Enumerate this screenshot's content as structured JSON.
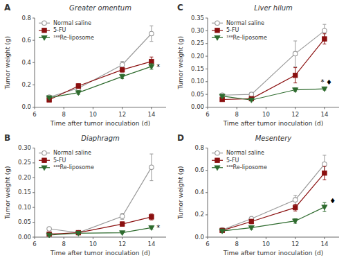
{
  "chart_data": [
    {
      "type": "line",
      "label": "A",
      "title": "Greater omentum",
      "xlabel": "Time after tumor inoculation (d)",
      "ylabel": "Tumor weight (g)",
      "x": [
        7,
        9,
        12,
        14
      ],
      "xlim": [
        6,
        15
      ],
      "xticks": [
        6,
        8,
        10,
        12,
        14
      ],
      "ylim": [
        0.0,
        0.8
      ],
      "yticks": [
        {
          "value": 0.0,
          "label": "0.0"
        },
        0.2,
        0.4,
        0.6,
        0.8
      ],
      "grid": false,
      "legend": "upper left",
      "series": [
        {
          "name": "Normal saline",
          "color": "#999999",
          "marker": "circle-open",
          "values": [
            0.09,
            0.17,
            0.38,
            0.66
          ],
          "errors": [
            0.015,
            0.025,
            0.03,
            0.07
          ]
        },
        {
          "name": "5-FU",
          "color": "#8B1010",
          "marker": "square",
          "values": [
            0.065,
            0.19,
            0.335,
            0.41
          ],
          "errors": [
            0.01,
            0.02,
            0.02,
            0.04
          ]
        },
        {
          "name": "¹⁸⁸Re-liposome",
          "color": "#2E6B2E",
          "marker": "triangle-down",
          "values": [
            0.085,
            0.13,
            0.275,
            0.365
          ],
          "errors": [
            0.01,
            0.015,
            0.02,
            0.025
          ]
        }
      ],
      "annotations": [
        {
          "text": "*",
          "x": 14.35,
          "y": 0.355
        }
      ]
    },
    {
      "type": "line",
      "label": "C",
      "title": "Liver hilum",
      "xlabel": "Time after tumor inoculation (d)",
      "ylabel": "Tumor weight (g)",
      "x": [
        7,
        9,
        12,
        14
      ],
      "xlim": [
        6,
        15
      ],
      "xticks": [
        6,
        8,
        10,
        12,
        14
      ],
      "ylim": [
        0.0,
        0.35
      ],
      "yticks": [
        {
          "value": 0.0,
          "label": "0.00"
        },
        0.05,
        {
          "value": 0.1,
          "label": "0.10"
        },
        0.15,
        {
          "value": 0.2,
          "label": "0.20"
        },
        0.25,
        {
          "value": 0.3,
          "label": "0.30"
        },
        0.35
      ],
      "grid": false,
      "legend": "upper left",
      "series": [
        {
          "name": "Normal saline",
          "color": "#999999",
          "marker": "circle-open",
          "values": [
            0.047,
            0.05,
            0.21,
            0.3
          ],
          "errors": [
            0.005,
            0.007,
            0.05,
            0.025
          ]
        },
        {
          "name": "5-FU",
          "color": "#8B1010",
          "marker": "square",
          "values": [
            0.03,
            0.033,
            0.125,
            0.268
          ],
          "errors": [
            0.004,
            0.005,
            0.03,
            0.02
          ]
        },
        {
          "name": "¹⁸⁸Re-liposome",
          "color": "#2E6B2E",
          "marker": "triangle-down",
          "values": [
            0.043,
            0.028,
            0.068,
            0.072
          ],
          "errors": [
            0.004,
            0.003,
            0.007,
            0.005
          ]
        }
      ],
      "annotations": [
        {
          "text": "*",
          "x": 13.75,
          "y": 0.098
        },
        {
          "text": "♦",
          "x": 14.1,
          "y": 0.098
        }
      ]
    },
    {
      "type": "line",
      "label": "B",
      "title": "Diaphragm",
      "xlabel": "Time after tumor inoculation (d)",
      "ylabel": "Tumor weight (g)",
      "x": [
        7,
        9,
        12,
        14
      ],
      "xlim": [
        6,
        15
      ],
      "xticks": [
        6,
        8,
        10,
        12,
        14
      ],
      "ylim": [
        0.0,
        0.3
      ],
      "yticks": [
        {
          "value": 0.0,
          "label": "0.00"
        },
        0.05,
        {
          "value": 0.1,
          "label": "0.10"
        },
        0.15,
        {
          "value": 0.2,
          "label": "0.20"
        },
        0.25,
        {
          "value": 0.3,
          "label": "0.30"
        }
      ],
      "grid": false,
      "legend": "upper left",
      "series": [
        {
          "name": "Normal saline",
          "color": "#999999",
          "marker": "circle-open",
          "values": [
            0.028,
            0.015,
            0.07,
            0.235
          ],
          "errors": [
            0.005,
            0.003,
            0.01,
            0.045
          ]
        },
        {
          "name": "5-FU",
          "color": "#8B1010",
          "marker": "square",
          "values": [
            0.01,
            0.015,
            0.044,
            0.068
          ],
          "errors": [
            0.003,
            0.003,
            0.007,
            0.01
          ]
        },
        {
          "name": "¹⁸⁸Re-liposome",
          "color": "#2E6B2E",
          "marker": "triangle-down",
          "values": [
            0.007,
            0.013,
            0.015,
            0.032
          ],
          "errors": [
            0.002,
            0.002,
            0.003,
            0.005
          ]
        }
      ],
      "annotations": [
        {
          "text": "*",
          "x": 14.35,
          "y": 0.03
        }
      ]
    },
    {
      "type": "line",
      "label": "D",
      "title": "Mesentery",
      "xlabel": "Time after tumor inoculation (d)",
      "ylabel": "Tumor weight (g)",
      "x": [
        7,
        9,
        12,
        14
      ],
      "xlim": [
        6,
        15
      ],
      "xticks": [
        6,
        8,
        10,
        12,
        14
      ],
      "ylim": [
        0.0,
        0.8
      ],
      "yticks": [
        {
          "value": 0.0,
          "label": "0.0"
        },
        0.2,
        0.4,
        0.6,
        0.8
      ],
      "grid": false,
      "legend": "upper left",
      "series": [
        {
          "name": "Normal saline",
          "color": "#999999",
          "marker": "circle-open",
          "values": [
            0.065,
            0.165,
            0.335,
            0.655
          ],
          "errors": [
            0.01,
            0.02,
            0.04,
            0.08
          ]
        },
        {
          "name": "5-FU",
          "color": "#8B1010",
          "marker": "square",
          "values": [
            0.06,
            0.14,
            0.265,
            0.575
          ],
          "errors": [
            0.01,
            0.02,
            0.03,
            0.06
          ]
        },
        {
          "name": "¹⁸⁸Re-liposome",
          "color": "#2E6B2E",
          "marker": "triangle-down",
          "values": [
            0.055,
            0.085,
            0.145,
            0.27
          ],
          "errors": [
            0.01,
            0.015,
            0.02,
            0.04
          ]
        }
      ],
      "annotations": [
        {
          "text": "♦",
          "x": 14.35,
          "y": 0.325
        }
      ]
    }
  ]
}
